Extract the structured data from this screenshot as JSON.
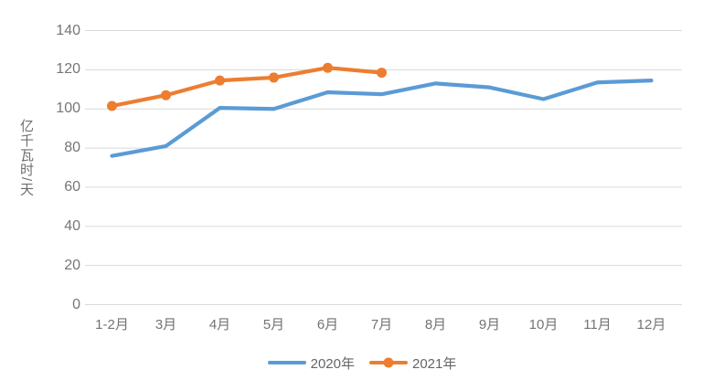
{
  "chart_data": {
    "type": "line",
    "title": "",
    "xlabel": "",
    "ylabel": "亿千瓦时/天",
    "categories": [
      "1-2月",
      "3月",
      "4月",
      "5月",
      "6月",
      "7月",
      "8月",
      "9月",
      "10月",
      "11月",
      "12月"
    ],
    "series": [
      {
        "name": "2020年",
        "color": "#5B9BD5",
        "marker": false,
        "values": [
          76,
          81,
          100.5,
          100,
          108.5,
          107.5,
          113,
          111,
          105,
          113.5,
          114.5
        ]
      },
      {
        "name": "2021年",
        "color": "#ED7D31",
        "marker": true,
        "values": [
          101.5,
          107,
          114.5,
          116,
          121,
          118.5
        ]
      }
    ],
    "yticks": [
      0,
      20,
      40,
      60,
      80,
      100,
      120,
      140
    ],
    "ylim": [
      0,
      140
    ],
    "grid": true,
    "grid_color": "#D9D9D9",
    "axis_label_color": "#737373",
    "legend_position": "bottom",
    "background": "#FFFFFF"
  }
}
